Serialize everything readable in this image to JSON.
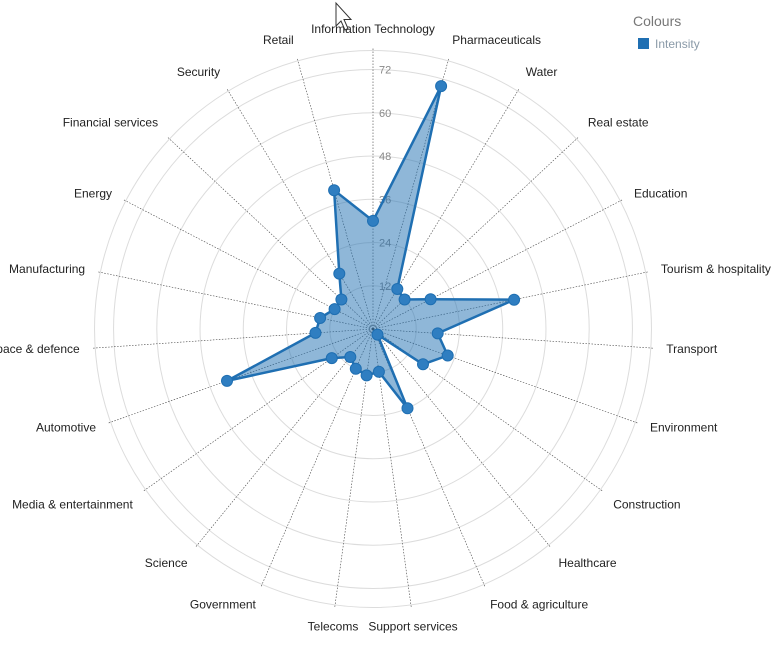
{
  "chart_data": {
    "type": "radar",
    "title": "",
    "categories": [
      "Information Technology",
      "Pharmaceuticals",
      "Water",
      "Real estate",
      "Education",
      "Tourism & hospitality",
      "Transport",
      "Environment",
      "Construction",
      "Healthcare",
      "Food & agriculture",
      "Support services",
      "Telecoms",
      "Government",
      "Science",
      "Media & entertainment",
      "Automotive",
      "Aerospace & defence",
      "Manufacturing",
      "Energy",
      "Financial services",
      "Security",
      "Retail"
    ],
    "series": [
      {
        "name": "Intensity",
        "values": [
          30,
          70,
          13,
          12,
          18,
          40,
          18,
          22,
          17,
          2,
          24,
          12,
          13,
          12,
          10,
          14,
          43,
          16,
          15,
          12,
          12,
          18,
          40
        ]
      }
    ],
    "ticks": [
      "12",
      "24",
      "36",
      "48",
      "60",
      "72"
    ],
    "rmax": 72,
    "grid": true,
    "legend_position": "top-right",
    "legend_title": "Colours",
    "color": "#1f6fb2"
  }
}
